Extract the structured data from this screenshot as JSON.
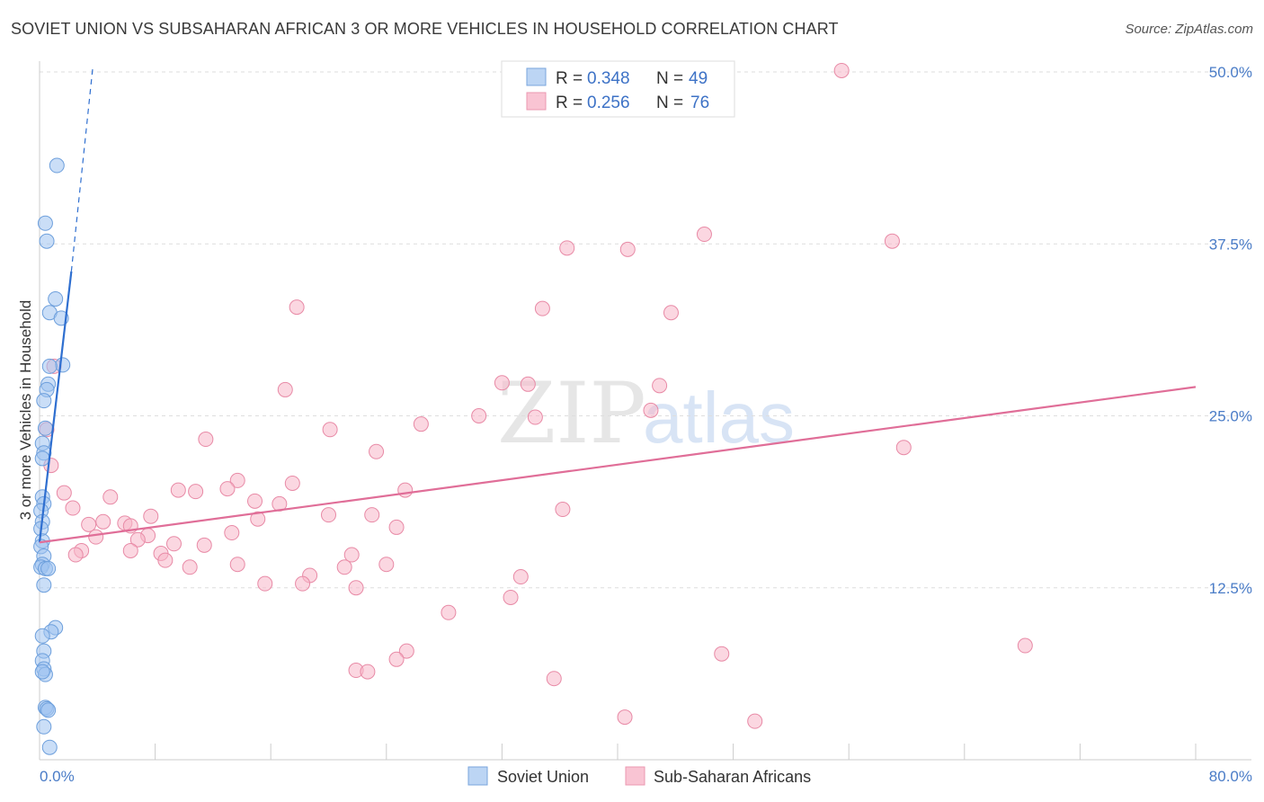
{
  "title": "SOVIET UNION VS SUBSAHARAN AFRICAN 3 OR MORE VEHICLES IN HOUSEHOLD CORRELATION CHART",
  "source": "Source: ZipAtlas.com",
  "watermark": {
    "zip": "ZIP",
    "atlas": "atlas"
  },
  "chart_data": {
    "type": "scatter",
    "ylabel": "3 or more Vehicles in Household",
    "xlabel": "",
    "xlim": [
      0,
      80
    ],
    "ylim": [
      0,
      50
    ],
    "x_tick_labels": [
      "0.0%",
      "80.0%"
    ],
    "y_ticks": [
      12.5,
      25.0,
      37.5,
      50.0
    ],
    "y_tick_labels": [
      "12.5%",
      "25.0%",
      "37.5%",
      "50.0%"
    ],
    "grid": true,
    "legend": [
      {
        "name": "Soviet Union",
        "r_label": "R =",
        "r": "0.348",
        "n_label": "N =",
        "n": "49",
        "color": "#9ec3f0",
        "stroke": "#6d9fdc"
      },
      {
        "name": "Sub-Saharan Africans",
        "r_label": "R =",
        "r": "0.256",
        "n_label": "N =",
        "n": "76",
        "color": "#f7b6c8",
        "stroke": "#e88aa6"
      }
    ],
    "series": [
      {
        "name": "Soviet Union",
        "color": "#9ec3f0",
        "stroke": "#6d9fdc",
        "trend": {
          "x0": 0,
          "y0": 15.8,
          "x1": 2.2,
          "y1": 35.5,
          "color": "#2f6fd0",
          "dash_x1": 3.7,
          "dash_y1": 50.5
        },
        "points": [
          [
            1.2,
            43.2
          ],
          [
            0.4,
            39.0
          ],
          [
            0.5,
            37.7
          ],
          [
            1.1,
            33.5
          ],
          [
            0.7,
            32.5
          ],
          [
            1.5,
            32.1
          ],
          [
            1.6,
            28.7
          ],
          [
            0.7,
            28.6
          ],
          [
            0.6,
            27.3
          ],
          [
            0.5,
            26.9
          ],
          [
            0.3,
            26.1
          ],
          [
            0.4,
            24.1
          ],
          [
            0.2,
            23.0
          ],
          [
            0.3,
            22.3
          ],
          [
            0.2,
            21.9
          ],
          [
            0.2,
            19.1
          ],
          [
            0.3,
            18.6
          ],
          [
            0.1,
            18.1
          ],
          [
            0.2,
            17.3
          ],
          [
            0.1,
            16.8
          ],
          [
            0.2,
            15.9
          ],
          [
            0.1,
            15.5
          ],
          [
            0.3,
            14.8
          ],
          [
            0.2,
            14.2
          ],
          [
            0.1,
            14.0
          ],
          [
            0.4,
            13.9
          ],
          [
            0.6,
            13.9
          ],
          [
            0.3,
            12.7
          ],
          [
            1.1,
            9.6
          ],
          [
            0.8,
            9.3
          ],
          [
            0.2,
            9.0
          ],
          [
            0.3,
            7.9
          ],
          [
            0.2,
            7.2
          ],
          [
            0.3,
            6.6
          ],
          [
            0.4,
            6.2
          ],
          [
            0.2,
            6.4
          ],
          [
            0.4,
            3.8
          ],
          [
            0.5,
            3.7
          ],
          [
            0.6,
            3.6
          ],
          [
            0.3,
            2.4
          ],
          [
            0.7,
            0.9
          ]
        ]
      },
      {
        "name": "Sub-Saharan Africans",
        "color": "#f7b6c8",
        "stroke": "#e88aa6",
        "trend": {
          "x0": 0,
          "y0": 15.8,
          "x1": 80,
          "y1": 27.1,
          "color": "#e06e98"
        },
        "points": [
          [
            55.5,
            50.1
          ],
          [
            46.0,
            38.2
          ],
          [
            59.0,
            37.7
          ],
          [
            36.5,
            37.2
          ],
          [
            40.7,
            37.1
          ],
          [
            17.8,
            32.9
          ],
          [
            34.8,
            32.8
          ],
          [
            43.7,
            32.5
          ],
          [
            1.0,
            28.6
          ],
          [
            17.0,
            26.9
          ],
          [
            32.0,
            27.4
          ],
          [
            33.8,
            27.3
          ],
          [
            42.9,
            27.2
          ],
          [
            42.3,
            25.4
          ],
          [
            30.4,
            25.0
          ],
          [
            34.3,
            24.9
          ],
          [
            26.4,
            24.4
          ],
          [
            20.1,
            24.0
          ],
          [
            0.5,
            24.0
          ],
          [
            11.5,
            23.3
          ],
          [
            59.8,
            22.7
          ],
          [
            23.3,
            22.4
          ],
          [
            0.8,
            21.4
          ],
          [
            13.7,
            20.3
          ],
          [
            17.5,
            20.1
          ],
          [
            13.0,
            19.7
          ],
          [
            9.6,
            19.6
          ],
          [
            10.8,
            19.5
          ],
          [
            25.3,
            19.6
          ],
          [
            1.7,
            19.4
          ],
          [
            4.9,
            19.1
          ],
          [
            14.9,
            18.8
          ],
          [
            16.6,
            18.6
          ],
          [
            2.3,
            18.3
          ],
          [
            36.2,
            18.2
          ],
          [
            20.0,
            17.8
          ],
          [
            23.0,
            17.8
          ],
          [
            7.7,
            17.7
          ],
          [
            15.1,
            17.5
          ],
          [
            4.4,
            17.3
          ],
          [
            3.4,
            17.1
          ],
          [
            5.9,
            17.2
          ],
          [
            6.3,
            17.0
          ],
          [
            24.7,
            16.9
          ],
          [
            13.3,
            16.5
          ],
          [
            3.9,
            16.2
          ],
          [
            7.5,
            16.3
          ],
          [
            6.8,
            16.0
          ],
          [
            9.3,
            15.7
          ],
          [
            11.4,
            15.6
          ],
          [
            2.9,
            15.2
          ],
          [
            6.3,
            15.2
          ],
          [
            8.4,
            15.0
          ],
          [
            2.5,
            14.9
          ],
          [
            8.7,
            14.5
          ],
          [
            21.6,
            14.9
          ],
          [
            13.7,
            14.2
          ],
          [
            10.4,
            14.0
          ],
          [
            24.0,
            14.2
          ],
          [
            21.1,
            14.0
          ],
          [
            18.7,
            13.4
          ],
          [
            33.3,
            13.3
          ],
          [
            18.2,
            12.8
          ],
          [
            15.6,
            12.8
          ],
          [
            21.9,
            12.5
          ],
          [
            32.6,
            11.8
          ],
          [
            28.3,
            10.7
          ],
          [
            68.2,
            8.3
          ],
          [
            25.4,
            7.9
          ],
          [
            47.2,
            7.7
          ],
          [
            24.7,
            7.3
          ],
          [
            21.9,
            6.5
          ],
          [
            22.7,
            6.4
          ],
          [
            35.6,
            5.9
          ],
          [
            40.5,
            3.1
          ],
          [
            49.5,
            2.8
          ]
        ]
      }
    ]
  }
}
